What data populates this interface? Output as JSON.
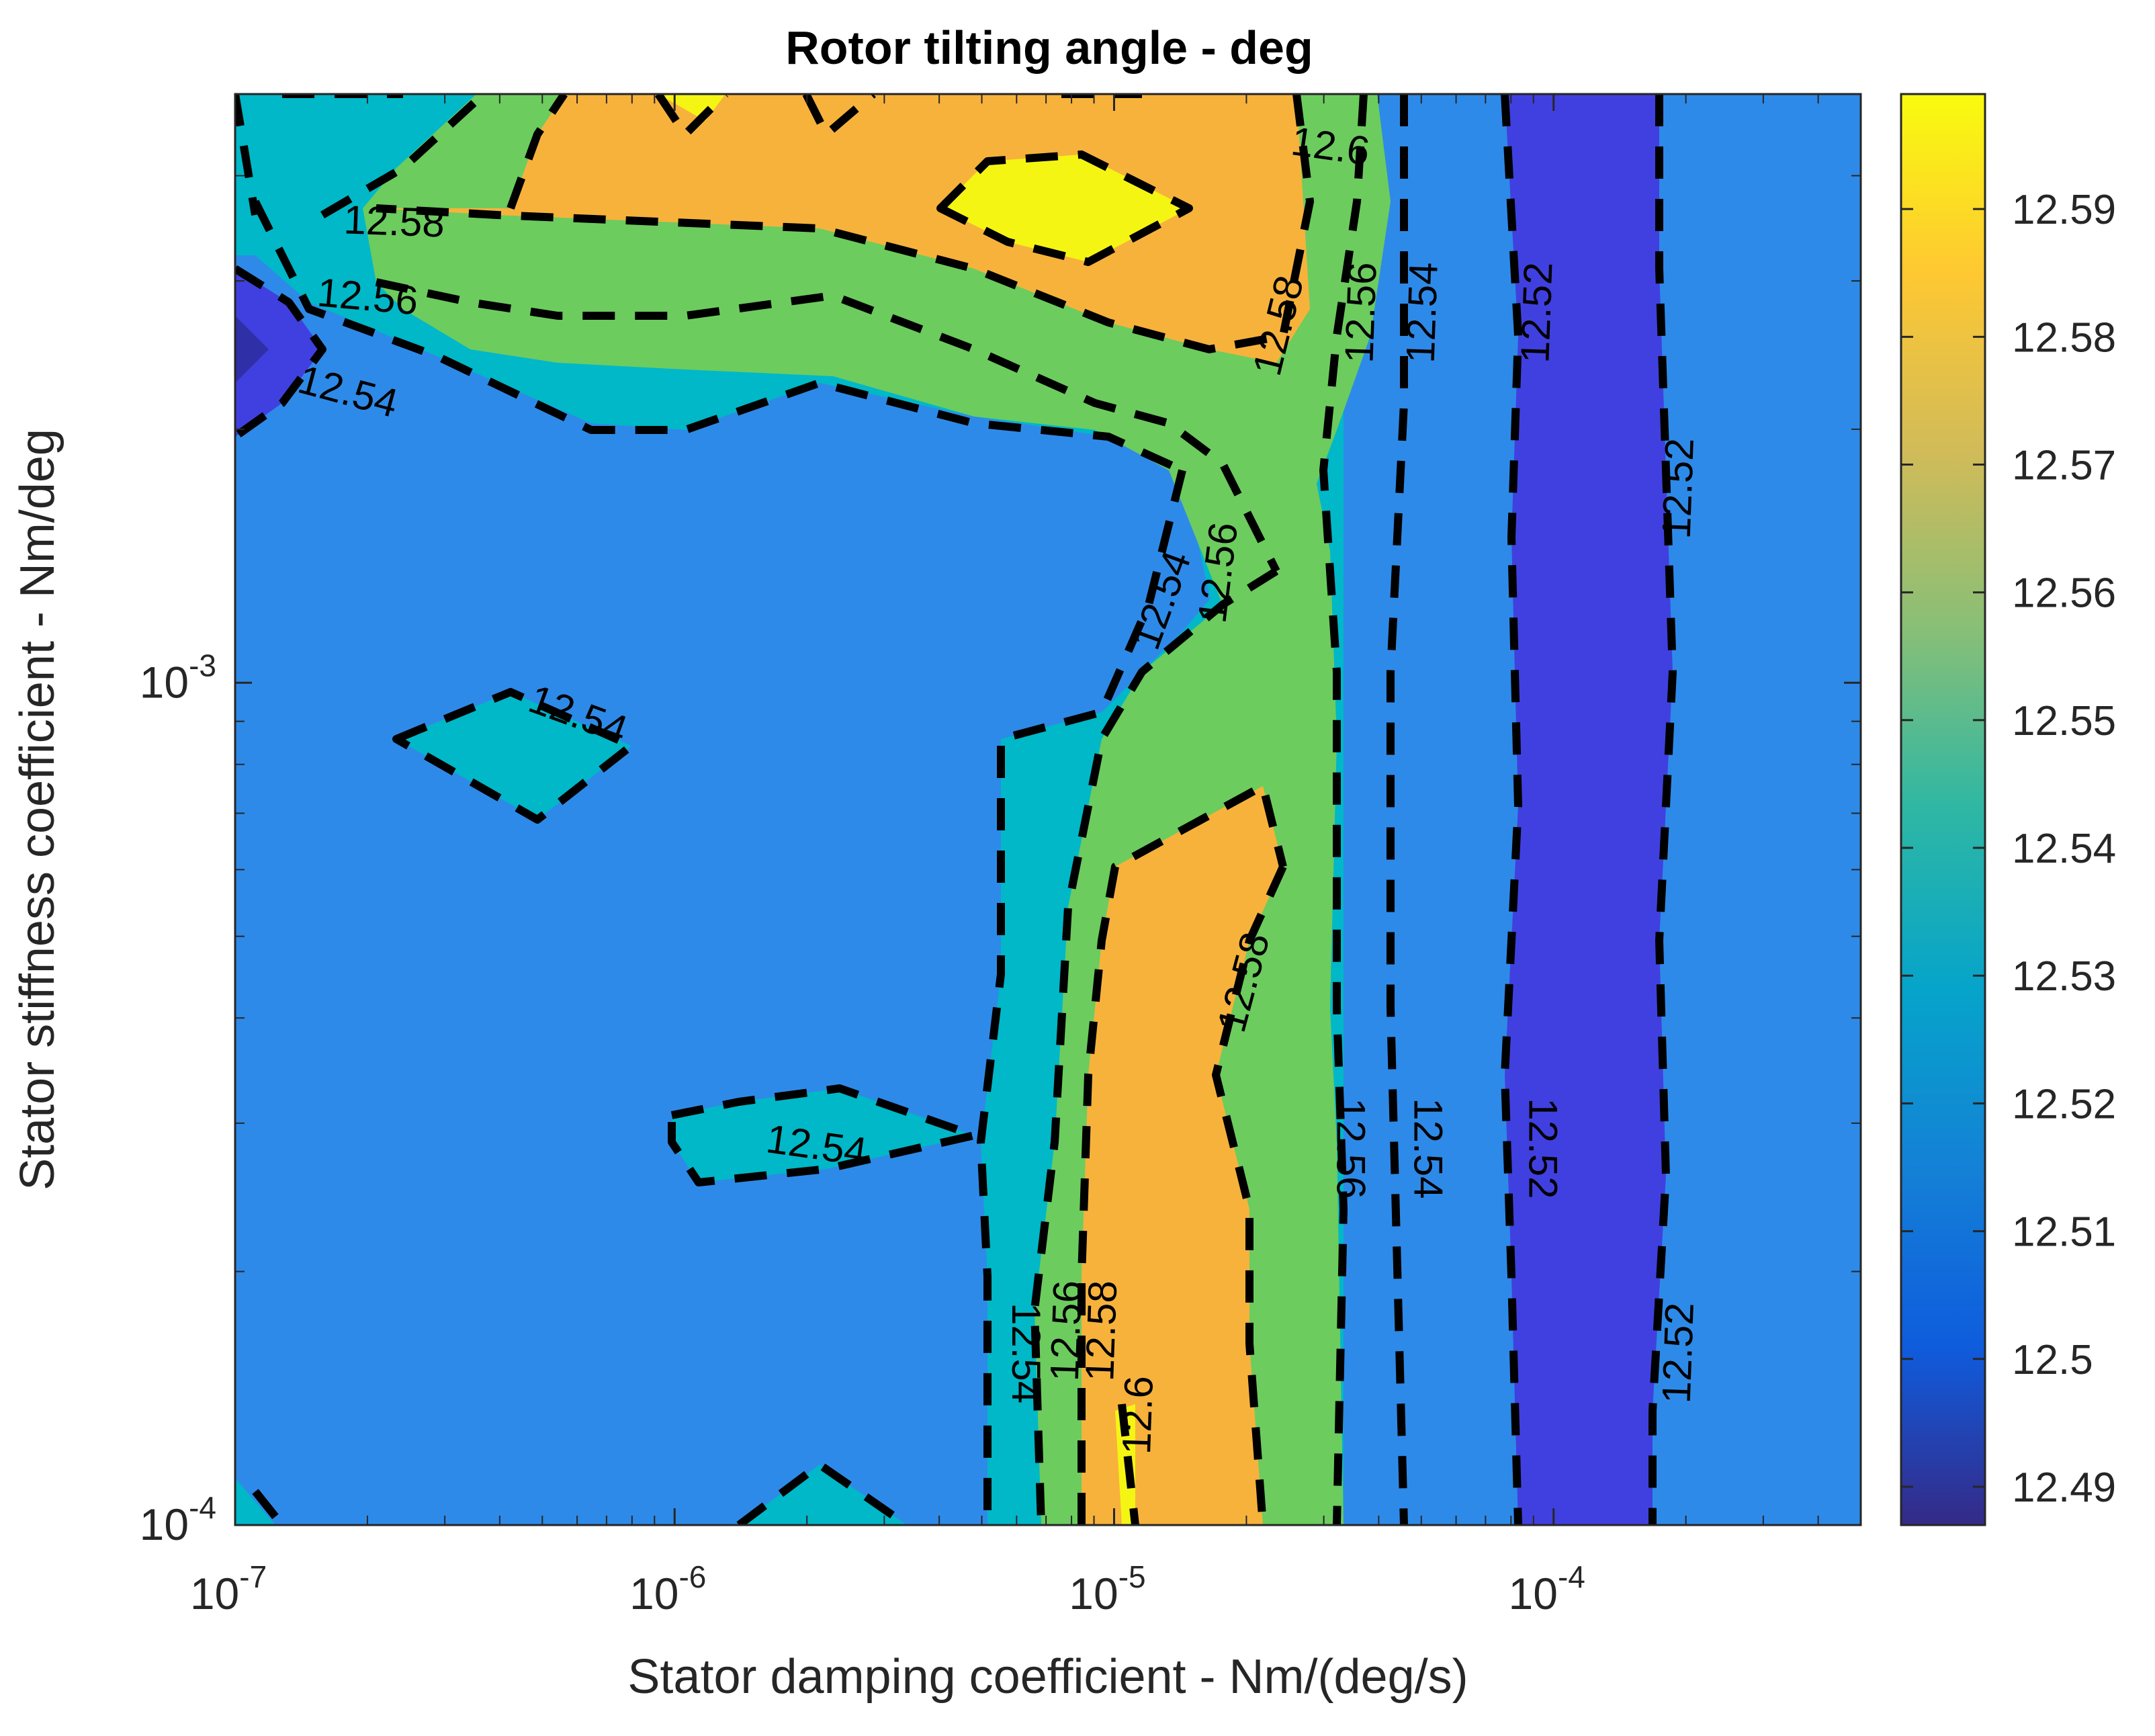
{
  "chart_data": {
    "type": "heatmap",
    "subtype": "filled-contour",
    "title": "Rotor tilting angle - deg",
    "xlabel": "Stator damping coefficient - Nm/(deg/s)",
    "ylabel": "Stator stiffness coefficient - Nm/deg",
    "x_scale": "log",
    "y_scale": "log",
    "xlim": [
      1e-07,
      0.0005
    ],
    "ylim": [
      0.0001,
      0.005
    ],
    "x_ticks": [
      {
        "value": 1e-07,
        "base": "10",
        "exp": "-7"
      },
      {
        "value": 1e-06,
        "base": "10",
        "exp": "-6"
      },
      {
        "value": 1e-05,
        "base": "10",
        "exp": "-5"
      },
      {
        "value": 0.0001,
        "base": "10",
        "exp": "-4"
      }
    ],
    "y_ticks": [
      {
        "value": 0.0001,
        "base": "10",
        "exp": "-4"
      },
      {
        "value": 0.001,
        "base": "10",
        "exp": "-3"
      }
    ],
    "colorbar": {
      "range": [
        12.487,
        12.599
      ],
      "ticks": [
        12.49,
        12.5,
        12.51,
        12.52,
        12.53,
        12.54,
        12.55,
        12.56,
        12.57,
        12.58,
        12.59
      ],
      "tick_labels": [
        "12.49",
        "12.5",
        "12.51",
        "12.52",
        "12.53",
        "12.54",
        "12.55",
        "12.56",
        "12.57",
        "12.58",
        "12.59"
      ]
    },
    "contour_levels": [
      12.52,
      12.54,
      12.56,
      12.58,
      12.6
    ],
    "level_colors": [
      "#2f2fa8",
      "#4040e0",
      "#2e8ae8",
      "#00b8c8",
      "#6ccc5e",
      "#f7b23c",
      "#f5f514"
    ],
    "contour_labels": [
      {
        "text": "12.6",
        "x": 3.1e-05,
        "y": 0.0043,
        "rot": 8
      },
      {
        "text": "12.58",
        "x": 2.3e-07,
        "y": 0.0035,
        "rot": 2
      },
      {
        "text": "12.56",
        "x": 2e-07,
        "y": 0.00285,
        "rot": 5
      },
      {
        "text": "12.54",
        "x": 1.8e-07,
        "y": 0.0022,
        "rot": 15
      },
      {
        "text": "12.58",
        "x": 2.4e-05,
        "y": 0.00265,
        "rot": -76
      },
      {
        "text": "12.56",
        "x": 3.7e-05,
        "y": 0.00275,
        "rot": -88
      },
      {
        "text": "12.54",
        "x": 5.1e-05,
        "y": 0.00275,
        "rot": -88
      },
      {
        "text": "12.52",
        "x": 9.3e-05,
        "y": 0.00275,
        "rot": -88
      },
      {
        "text": "12.52",
        "x": 0.000195,
        "y": 0.0017,
        "rot": -88
      },
      {
        "text": "12.56",
        "x": 1.75e-05,
        "y": 0.00135,
        "rot": -83
      },
      {
        "text": "12.54",
        "x": 1.3e-05,
        "y": 0.00125,
        "rot": -70
      },
      {
        "text": "12.54",
        "x": 6e-07,
        "y": 0.00091,
        "rot": 20
      },
      {
        "text": "12.54",
        "x": 2.1e-06,
        "y": 0.00028,
        "rot": 8
      },
      {
        "text": "12.58",
        "x": 2e-05,
        "y": 0.00044,
        "rot": -75
      },
      {
        "text": "12.56",
        "x": 3.4e-05,
        "y": 0.00028,
        "rot": 90
      },
      {
        "text": "12.54",
        "x": 5.1e-05,
        "y": 0.00028,
        "rot": 90
      },
      {
        "text": "12.52",
        "x": 9.3e-05,
        "y": 0.00028,
        "rot": 90
      },
      {
        "text": "12.52",
        "x": 0.000195,
        "y": 0.00016,
        "rot": -88
      },
      {
        "text": "12.54",
        "x": 6.2e-06,
        "y": 0.00016,
        "rot": 90
      },
      {
        "text": "12.56",
        "x": 7.9e-06,
        "y": 0.00017,
        "rot": -88
      },
      {
        "text": "12.58",
        "x": 9.5e-06,
        "y": 0.00017,
        "rot": -88
      },
      {
        "text": "12.6",
        "x": 1.15e-05,
        "y": 0.000135,
        "rot": -88
      }
    ]
  }
}
